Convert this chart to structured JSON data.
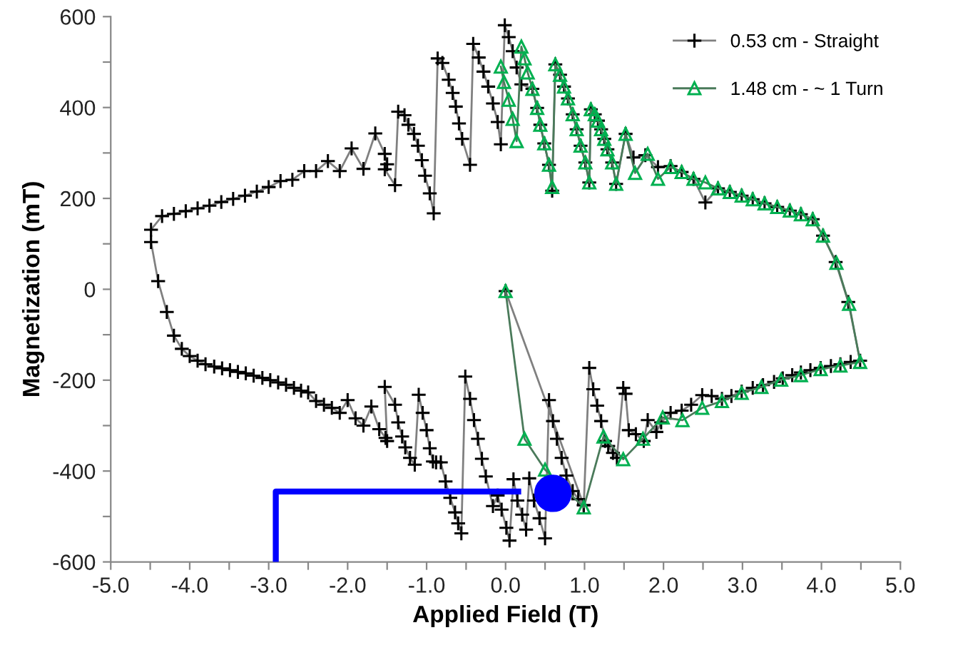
{
  "chart_data": {
    "type": "line",
    "xlabel": "Applied Field (T)",
    "ylabel": "Magnetization (mT)",
    "xlim": [
      -5,
      5
    ],
    "ylim": [
      -600,
      600
    ],
    "xticks": [
      {
        "value": -5,
        "label": "-5.0"
      },
      {
        "value": -4.5,
        "label": null
      },
      {
        "value": -4,
        "label": "-4.0"
      },
      {
        "value": -3.5,
        "label": null
      },
      {
        "value": -3,
        "label": "-3.0"
      },
      {
        "value": -2.5,
        "label": null
      },
      {
        "value": -2,
        "label": "-2.0"
      },
      {
        "value": -1.5,
        "label": null
      },
      {
        "value": -1,
        "label": "-1.0"
      },
      {
        "value": -0.5,
        "label": null
      },
      {
        "value": 0,
        "label": "0.0"
      },
      {
        "value": 0.5,
        "label": null
      },
      {
        "value": 1,
        "label": "1.0"
      },
      {
        "value": 1.5,
        "label": null
      },
      {
        "value": 2,
        "label": "2.0"
      },
      {
        "value": 2.5,
        "label": null
      },
      {
        "value": 3,
        "label": "3.0"
      },
      {
        "value": 3.5,
        "label": null
      },
      {
        "value": 4,
        "label": "4.0"
      },
      {
        "value": 4.5,
        "label": null
      },
      {
        "value": 5,
        "label": "5.0"
      }
    ],
    "yticks": [
      -600,
      {
        "value": -500,
        "label": null
      },
      -400,
      {
        "value": -300,
        "label": null
      },
      -200,
      {
        "value": -100,
        "label": null
      },
      0,
      {
        "value": 100,
        "label": null
      },
      200,
      {
        "value": 300,
        "label": null
      },
      400,
      {
        "value": 500,
        "label": null
      },
      600
    ],
    "grid": false,
    "legend": "top right",
    "line_style": "solid",
    "series": [
      {
        "name": "0.53 cm - Straight",
        "color": "#000000",
        "marker": "cross",
        "x": [
          0.0,
          0.99,
          1.06,
          1.11,
          1.16,
          1.21,
          1.26,
          1.3,
          1.36,
          1.41,
          1.49,
          1.52,
          1.56,
          1.65,
          1.75,
          1.8,
          1.91,
          1.97,
          2.09,
          2.23,
          2.35,
          2.49,
          2.61,
          2.74,
          2.86,
          2.99,
          3.13,
          3.26,
          3.4,
          3.51,
          3.63,
          3.74,
          3.86,
          3.99,
          4.12,
          4.24,
          4.37,
          4.49,
          4.34,
          4.18,
          4.02,
          3.89,
          3.74,
          3.6,
          3.44,
          3.28,
          3.13,
          2.99,
          2.84,
          2.69,
          2.53,
          2.38,
          2.23,
          2.09,
          1.93,
          1.77,
          1.62,
          1.52,
          1.4,
          1.35,
          1.29,
          1.25,
          1.21,
          1.17,
          1.13,
          1.08,
          1.06,
          1.01,
          0.95,
          0.9,
          0.85,
          0.79,
          0.74,
          0.69,
          0.63,
          0.59,
          0.55,
          0.49,
          0.44,
          0.4,
          0.34,
          0.2,
          0.14,
          0.09,
          0.04,
          -0.01,
          -0.06,
          -0.1,
          -0.16,
          -0.22,
          -0.28,
          -0.34,
          -0.41,
          -0.45,
          -0.55,
          -0.59,
          -0.63,
          -0.67,
          -0.72,
          -0.8,
          -0.86,
          -0.91,
          -0.96,
          -1.02,
          -1.06,
          -1.11,
          -1.16,
          -1.23,
          -1.28,
          -1.36,
          -1.4,
          -1.53,
          -1.5,
          -1.53,
          -1.65,
          -1.8,
          -1.95,
          -2.1,
          -2.25,
          -2.4,
          -2.55,
          -2.7,
          -2.85,
          -3.0,
          -3.15,
          -3.3,
          -3.45,
          -3.6,
          -3.75,
          -3.9,
          -4.05,
          -4.2,
          -4.35,
          -4.49,
          -4.49,
          -4.4,
          -4.29,
          -4.2,
          -4.1,
          -4.0,
          -3.9,
          -3.8,
          -3.69,
          -3.59,
          -3.49,
          -3.39,
          -3.29,
          -3.19,
          -3.08,
          -2.98,
          -2.88,
          -2.78,
          -2.68,
          -2.59,
          -2.5,
          -2.4,
          -2.3,
          -2.2,
          -2.1,
          -2.0,
          -1.9,
          -1.8,
          -1.7,
          -1.6,
          -1.52,
          -1.5,
          -1.53,
          -1.4,
          -1.36,
          -1.31,
          -1.27,
          -1.21,
          -1.15,
          -1.1,
          -1.05,
          -1.0,
          -0.96,
          -0.92,
          -0.88,
          -0.82,
          -0.76,
          -0.7,
          -0.64,
          -0.6,
          -0.56,
          -0.51,
          -0.45,
          -0.4,
          -0.35,
          -0.3,
          -0.25,
          -0.16,
          -0.1,
          -0.05,
          0.01,
          0.05,
          0.1,
          0.15,
          0.21,
          0.26,
          0.3,
          0.36,
          0.43,
          0.5,
          0.55,
          0.6,
          0.65,
          0.71,
          0.77,
          0.85,
          0.92,
          0.99
        ],
        "values": [
          -4,
          -475,
          -173,
          -220,
          -256,
          -290,
          -334,
          -345,
          -360,
          -371,
          -217,
          -230,
          -310,
          -319,
          -334,
          -288,
          -314,
          -293,
          -272,
          -267,
          -254,
          -233,
          -235,
          -241,
          -235,
          -225,
          -217,
          -211,
          -204,
          -196,
          -189,
          -183,
          -178,
          -173,
          -169,
          -165,
          -160,
          -157,
          -28,
          60,
          118,
          154,
          165,
          173,
          181,
          189,
          198,
          206,
          214,
          222,
          191,
          243,
          258,
          271,
          269,
          295,
          290,
          342,
          232,
          279,
          308,
          331,
          352,
          371,
          385,
          396,
          235,
          279,
          316,
          352,
          385,
          420,
          446,
          472,
          495,
          217,
          274,
          321,
          362,
          399,
          441,
          451,
          488,
          524,
          555,
          581,
          319,
          368,
          409,
          446,
          479,
          510,
          540,
          274,
          331,
          365,
          402,
          432,
          461,
          498,
          508,
          167,
          211,
          250,
          284,
          316,
          342,
          362,
          383,
          391,
          229,
          264,
          275,
          298,
          343,
          265,
          310,
          260,
          282,
          260,
          260,
          241,
          238,
          225,
          215,
          206,
          199,
          192,
          184,
          178,
          172,
          166,
          161,
          131,
          104,
          18,
          -50,
          -102,
          -131,
          -147,
          -157,
          -165,
          -170,
          -174,
          -178,
          -182,
          -185,
          -190,
          -195,
          -200,
          -205,
          -210,
          -217,
          -223,
          -227,
          -246,
          -254,
          -261,
          -272,
          -244,
          -284,
          -300,
          -258,
          -308,
          -327,
          -334,
          -215,
          -254,
          -293,
          -324,
          -348,
          -371,
          -386,
          -232,
          -272,
          -310,
          -350,
          -379,
          -381,
          -381,
          -423,
          -459,
          -491,
          -515,
          -537,
          -192,
          -241,
          -288,
          -329,
          -373,
          -412,
          -477,
          -454,
          -485,
          -525,
          -553,
          -418,
          -465,
          -496,
          -529,
          -416,
          -465,
          -504,
          -548,
          -244,
          -290,
          -329,
          -371,
          -410,
          -444,
          -462,
          -475
        ]
      },
      {
        "name": "1.48 cm - ~ 1 Turn",
        "color": "#00b050",
        "marker": "triangle",
        "x": [
          0.0,
          0.24,
          0.5,
          0.99,
          1.24,
          1.49,
          1.74,
          1.99,
          2.24,
          2.49,
          2.74,
          2.99,
          3.24,
          3.49,
          3.74,
          3.99,
          4.24,
          4.49,
          4.35,
          4.19,
          4.02,
          3.89,
          3.74,
          3.6,
          3.44,
          3.28,
          3.13,
          2.99,
          2.84,
          2.69,
          2.53,
          2.38,
          2.23,
          2.09,
          1.93,
          1.8,
          1.64,
          1.52,
          1.4,
          1.35,
          1.29,
          1.25,
          1.21,
          1.17,
          1.13,
          1.08,
          1.06,
          1.01,
          0.95,
          0.9,
          0.85,
          0.79,
          0.74,
          0.69,
          0.63,
          0.59,
          0.55,
          0.49,
          0.44,
          0.4,
          0.34,
          0.28,
          0.24,
          0.2,
          0.14,
          0.09,
          0.04,
          -0.02,
          -0.06
        ],
        "values": [
          -4,
          -329,
          -397,
          -480,
          -324,
          -374,
          -329,
          -282,
          -288,
          -261,
          -246,
          -228,
          -215,
          -199,
          -189,
          -176,
          -168,
          -160,
          -32,
          58,
          118,
          154,
          165,
          173,
          181,
          189,
          198,
          206,
          214,
          222,
          235,
          243,
          258,
          269,
          243,
          298,
          256,
          342,
          232,
          279,
          308,
          331,
          352,
          371,
          385,
          396,
          235,
          279,
          316,
          352,
          385,
          420,
          446,
          472,
          495,
          225,
          274,
          321,
          362,
          399,
          441,
          477,
          508,
          534,
          326,
          375,
          417,
          456,
          490
        ]
      },
      {
        "color": "#0000ff",
        "marker": "none",
        "x": [
          -2.91,
          -2.91,
          0.16
        ],
        "values": [
          -600,
          -445,
          -445
        ]
      },
      {
        "type": "scatter",
        "color": "#0000ff",
        "marker": "circle",
        "x": [
          0.6
        ],
        "values": [
          -449
        ]
      }
    ]
  }
}
